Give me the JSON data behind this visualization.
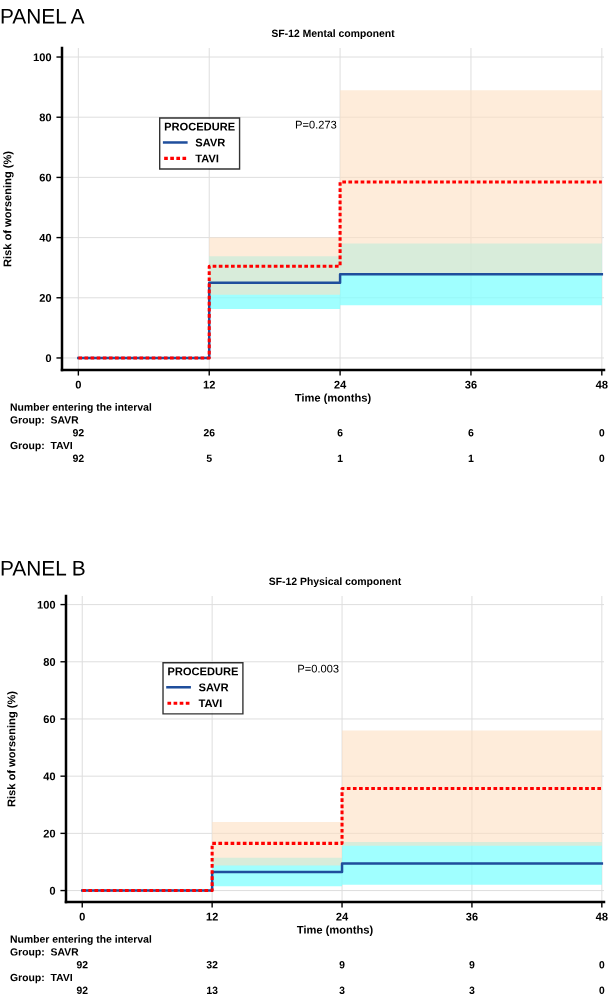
{
  "chart_data": [
    {
      "type": "step",
      "title": "PANEL A",
      "subtitle": "SF-12 Mental component",
      "xlabel": "Time (months)",
      "ylabel": "Risk of worsening (%)",
      "legend_title": "PROCEDURE",
      "legend": "top left",
      "grid": true,
      "line_style": "solid",
      "x": [
        0,
        12,
        24,
        48
      ],
      "xlim": [
        -1.5,
        48.2
      ],
      "xticks": [
        0,
        12,
        24,
        36,
        48
      ],
      "ylim": [
        -4,
        103
      ],
      "yticks": [
        0,
        20,
        40,
        60,
        80,
        100
      ],
      "series": [
        {
          "name": "SAVR",
          "color": "#1f4e9c",
          "values": [
            0,
            25,
            27.8,
            27.8
          ],
          "lower": [
            0,
            16.3,
            17.5,
            17.5
          ],
          "upper": [
            0,
            33.8,
            38,
            38
          ]
        },
        {
          "name": "TAVI",
          "color": "#ff0000",
          "line_style": "dotted",
          "values": [
            0,
            30.5,
            58.5,
            58.5
          ],
          "lower": [
            0,
            21,
            28,
            28
          ],
          "upper": [
            0,
            40,
            89,
            89
          ]
        }
      ],
      "annotations": [
        "P=0.273",
        "Number entering the interval",
        "Group:  SAVR",
        "92",
        "26",
        "6",
        "6",
        "0",
        "Group:  TAVI",
        "92",
        "5",
        "1",
        "1",
        "0"
      ]
    },
    {
      "type": "step",
      "title": "PANEL B",
      "subtitle": "SF-12 Physical component",
      "xlabel": "Time (months)",
      "ylabel": "Risk of worsening (%)",
      "legend_title": "PROCEDURE",
      "legend": "top left",
      "grid": true,
      "line_style": "solid",
      "x": [
        0,
        12,
        24,
        48
      ],
      "xlim": [
        -1.5,
        48.2
      ],
      "xticks": [
        0,
        12,
        24,
        36,
        48
      ],
      "ylim": [
        -4,
        103
      ],
      "yticks": [
        0,
        20,
        40,
        60,
        80,
        100
      ],
      "series": [
        {
          "name": "SAVR",
          "color": "#1f4e9c",
          "values": [
            0,
            6.5,
            9.5,
            9.5
          ],
          "lower": [
            0,
            1.5,
            2,
            2
          ],
          "upper": [
            0,
            11.5,
            17,
            17
          ]
        },
        {
          "name": "TAVI",
          "color": "#ff0000",
          "line_style": "dotted",
          "values": [
            0,
            16.5,
            35.7,
            35.7
          ],
          "lower": [
            0,
            8.8,
            15.7,
            15.7
          ],
          "upper": [
            0,
            24,
            56,
            56
          ]
        }
      ],
      "annotations": [
        "P=0.003",
        "Number entering the interval",
        "Group:  SAVR",
        "92",
        "32",
        "9",
        "9",
        "0",
        "Group:  TAVI",
        "92",
        "13",
        "3",
        "3",
        "0"
      ]
    }
  ]
}
